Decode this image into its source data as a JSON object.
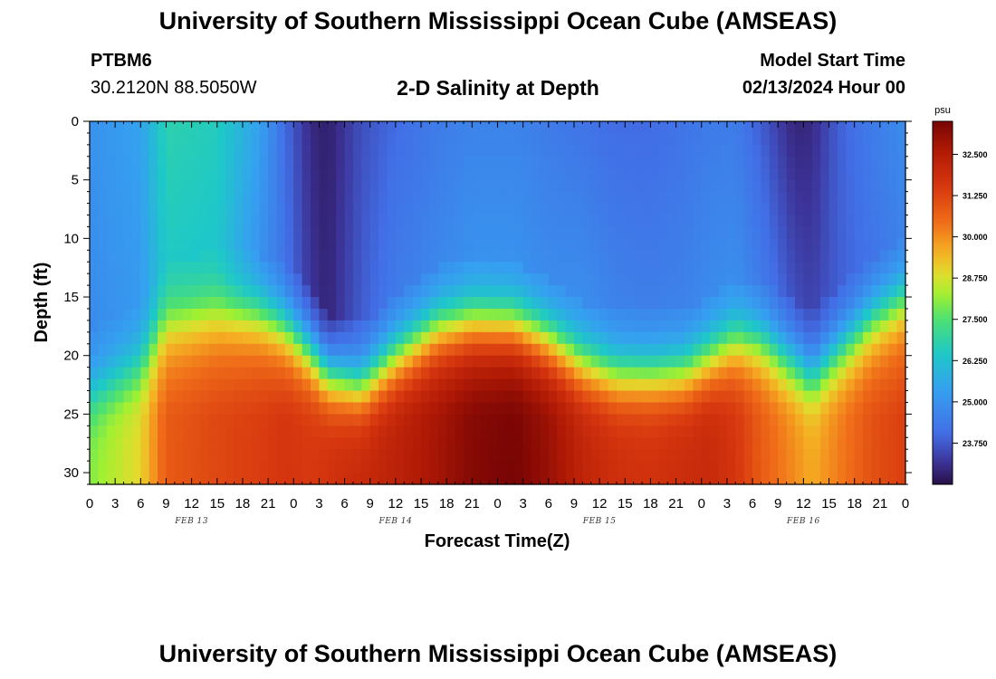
{
  "header": {
    "title": "University of Southern Mississippi Ocean Cube (AMSEAS)",
    "station_id": "PTBM6",
    "station_coords": "30.2120N  88.5050W",
    "plot_title": "2-D Salinity at Depth",
    "start_label": "Model Start Time",
    "start_value": "02/13/2024 Hour 00"
  },
  "footer": {
    "title": "University of Southern Mississippi Ocean Cube (AMSEAS)"
  },
  "chart_data": {
    "type": "heatmap",
    "title": "2-D Salinity at Depth",
    "xlabel": "Forecast Time(Z)",
    "ylabel": "Depth (ft)",
    "x_hours": [
      0,
      96
    ],
    "xlim": [
      0,
      96
    ],
    "ylim": [
      0,
      31
    ],
    "x_tick_labels": [
      "0",
      "3",
      "6",
      "9",
      "12",
      "15",
      "18",
      "21",
      "0",
      "3",
      "6",
      "9",
      "12",
      "15",
      "18",
      "21",
      "0",
      "3",
      "6",
      "9",
      "12",
      "15",
      "18",
      "21",
      "0",
      "3",
      "6",
      "9",
      "12",
      "15",
      "18",
      "21",
      "0"
    ],
    "y_ticks": [
      0,
      5,
      10,
      15,
      20,
      25,
      30
    ],
    "date_labels": [
      {
        "label": "FEB 13",
        "hour": 12
      },
      {
        "label": "FEB 14",
        "hour": 36
      },
      {
        "label": "FEB 15",
        "hour": 60
      },
      {
        "label": "FEB 16",
        "hour": 84
      }
    ],
    "colorbar": {
      "unit": "psu",
      "min": 22.5,
      "max": 33.5,
      "tick_labels": [
        "32.500",
        "31.250",
        "30.000",
        "28.750",
        "27.500",
        "26.250",
        "25.000",
        "23.750"
      ],
      "tick_values": [
        32.5,
        31.25,
        30.0,
        28.75,
        27.5,
        26.25,
        25.0,
        23.75
      ]
    },
    "salinity_by_hour": {
      "hours": [
        0,
        6,
        9,
        15,
        20,
        23,
        26,
        28,
        32,
        36,
        41,
        45,
        50,
        54,
        58,
        62,
        66,
        70,
        73,
        76,
        79,
        83,
        85,
        88,
        92,
        96
      ],
      "surface": [
        25.0,
        25.4,
        26.8,
        26.6,
        25.4,
        24.0,
        23.0,
        22.8,
        23.6,
        24.0,
        24.4,
        24.6,
        24.6,
        24.4,
        24.2,
        24.0,
        24.0,
        24.2,
        24.4,
        24.4,
        23.8,
        22.9,
        23.0,
        23.8,
        24.4,
        24.8
      ],
      "mixed_layer_salinity": [
        24.8,
        25.2,
        26.5,
        26.4,
        25.0,
        24.2,
        23.2,
        22.9,
        23.8,
        24.4,
        24.7,
        25.0,
        25.0,
        24.8,
        24.9,
        24.6,
        24.5,
        24.6,
        24.8,
        24.9,
        24.4,
        23.6,
        23.4,
        23.8,
        24.2,
        24.6
      ],
      "halocline_depth_ft": [
        23.0,
        20.5,
        17.0,
        16.2,
        16.4,
        17.5,
        19.5,
        21.5,
        22.5,
        20.0,
        17.5,
        17.0,
        17.2,
        18.5,
        20.5,
        21.5,
        21.5,
        21.3,
        20.0,
        18.5,
        18.6,
        20.5,
        21.5,
        19.5,
        16.8,
        15.0
      ],
      "bottom": [
        28.0,
        29.0,
        30.8,
        31.2,
        31.4,
        31.6,
        31.5,
        31.7,
        32.0,
        32.3,
        32.8,
        33.3,
        33.5,
        33.0,
        32.2,
        31.8,
        31.7,
        31.9,
        32.0,
        31.6,
        30.8,
        30.0,
        29.6,
        30.2,
        31.0,
        31.4
      ]
    }
  }
}
